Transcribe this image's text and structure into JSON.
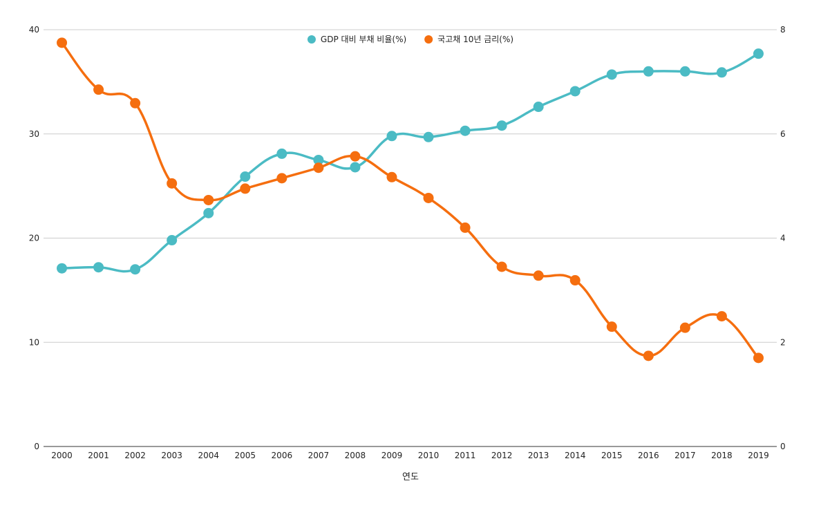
{
  "chart_data": {
    "type": "line",
    "title": "",
    "xlabel": "연도",
    "ylabel_left": "",
    "ylabel_right": "",
    "categories": [
      "2000",
      "2001",
      "2002",
      "2003",
      "2004",
      "2005",
      "2006",
      "2007",
      "2008",
      "2009",
      "2010",
      "2011",
      "2012",
      "2013",
      "2014",
      "2015",
      "2016",
      "2017",
      "2018",
      "2019"
    ],
    "y_left": {
      "min": 0,
      "max": 40,
      "ticks": [
        0,
        10,
        20,
        30,
        40
      ]
    },
    "y_right": {
      "min": 0,
      "max": 8,
      "ticks": [
        0,
        2,
        4,
        6,
        8
      ]
    },
    "grid": true,
    "legend_position": "top-center",
    "series": [
      {
        "name": "GDP 대비 부채 비율(%)",
        "axis": "left",
        "color": "#4bbbc4",
        "values": [
          17.1,
          17.2,
          17.0,
          19.8,
          22.4,
          25.9,
          28.1,
          27.5,
          26.8,
          29.8,
          29.7,
          30.3,
          30.8,
          32.6,
          34.1,
          35.7,
          36.0,
          36.0,
          35.9,
          37.7
        ]
      },
      {
        "name": "국고채 10년 금리(%)",
        "axis": "right",
        "color": "#f56e0f",
        "values": [
          7.75,
          6.85,
          6.59,
          5.05,
          4.73,
          4.95,
          5.15,
          5.35,
          5.57,
          5.17,
          4.77,
          4.2,
          3.45,
          3.28,
          3.19,
          2.3,
          1.74,
          2.28,
          2.5,
          1.7
        ]
      }
    ]
  }
}
